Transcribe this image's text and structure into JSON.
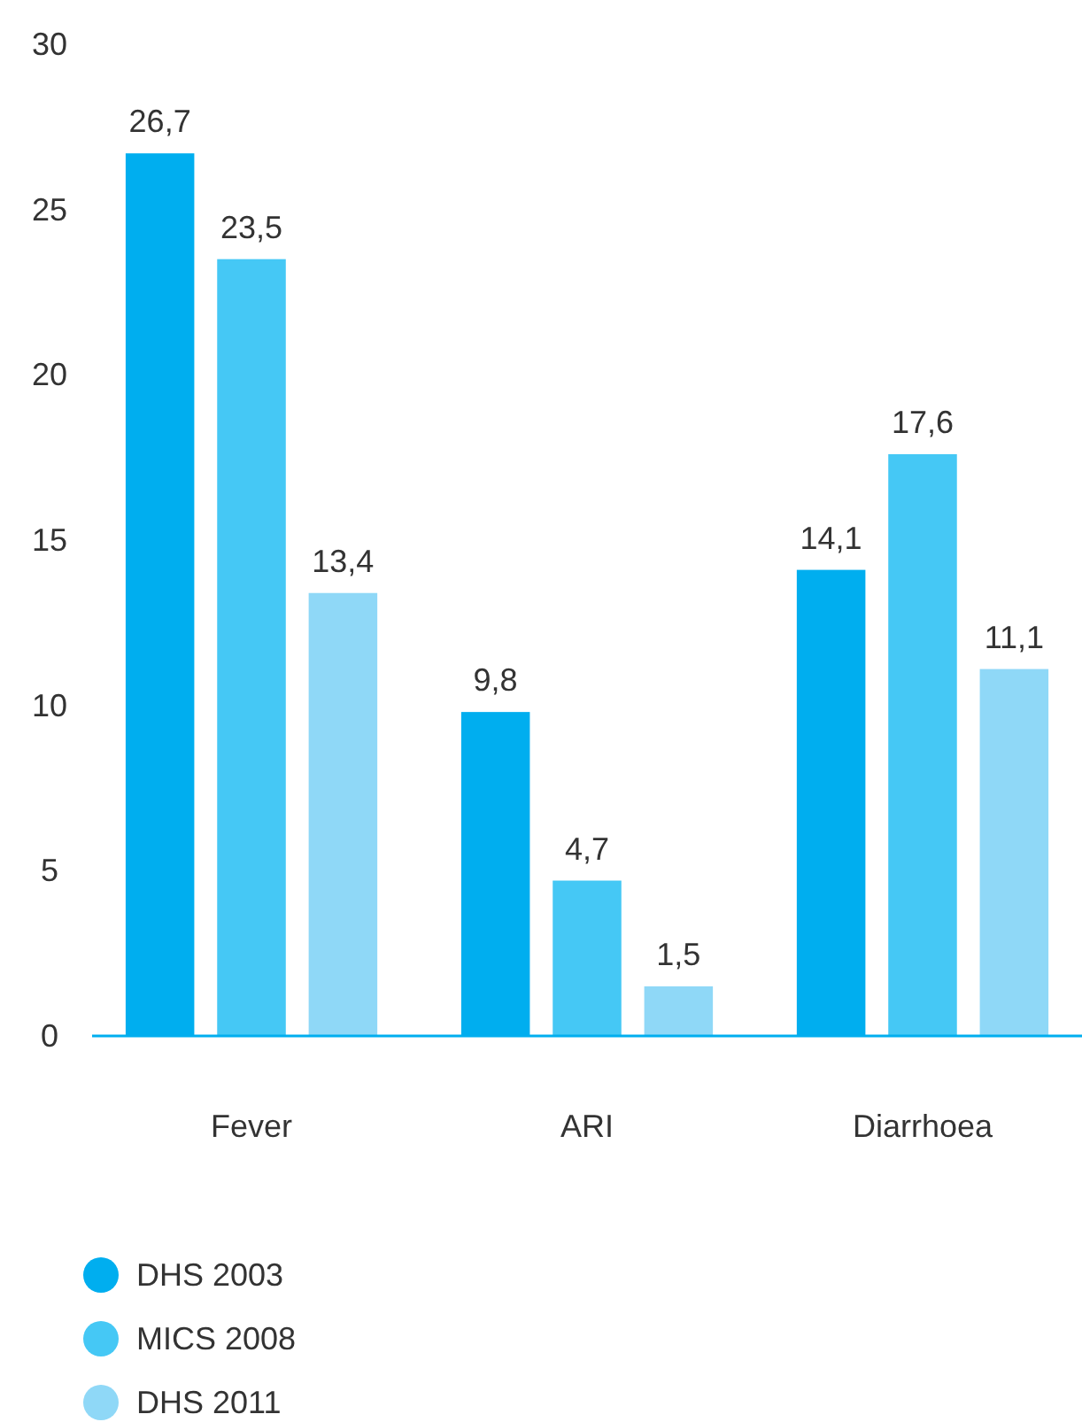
{
  "chart_data": {
    "type": "bar",
    "categories": [
      "Fever",
      "ARI",
      "Diarrhoea"
    ],
    "series": [
      {
        "name": "DHS 2003",
        "color": "#00aeef",
        "values": [
          26.7,
          9.8,
          14.1
        ],
        "value_labels": [
          "26,7",
          "9,8",
          "14,1"
        ]
      },
      {
        "name": "MICS 2008",
        "color": "#45c8f5",
        "values": [
          23.5,
          4.7,
          17.6
        ],
        "value_labels": [
          "23,5",
          "4,7",
          "17,6"
        ]
      },
      {
        "name": "DHS 2011",
        "color": "#8fd8f7",
        "values": [
          13.4,
          1.5,
          11.1
        ],
        "value_labels": [
          "13,4",
          "1,5",
          "11,1"
        ]
      }
    ],
    "ylim": [
      0,
      30
    ],
    "yticks": [
      0,
      5,
      10,
      15,
      20,
      25,
      30
    ],
    "grid": false,
    "legend": "bottom left"
  }
}
